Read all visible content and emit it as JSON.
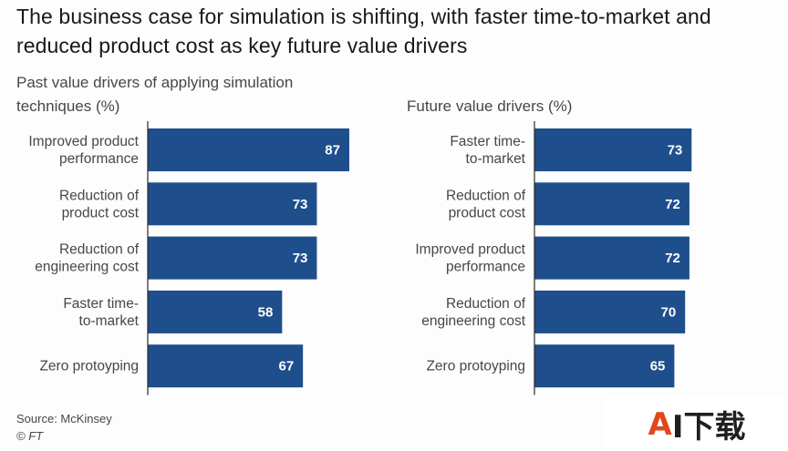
{
  "title": "The business case for simulation is shifting, with faster time-to-market and reduced product cost as key future value drivers",
  "source": "Source: McKinsey",
  "copyright": "© FT",
  "watermark_text": "AI下载",
  "colors": {
    "bar": "#1f4e8c",
    "axis": "#2b2b2b",
    "text": "#4a4643"
  },
  "chart_data": [
    {
      "type": "bar",
      "orientation": "horizontal",
      "title": "Past value drivers of applying simulation techniques (%)",
      "categories": [
        [
          "Improved product",
          "performance"
        ],
        [
          "Reduction of",
          "product cost"
        ],
        [
          "Reduction of",
          "engineering cost"
        ],
        [
          "Faster time-",
          "to-market"
        ],
        [
          "Zero protoyping"
        ]
      ],
      "values": [
        87,
        73,
        73,
        58,
        67
      ],
      "xlim": [
        0,
        100
      ],
      "grid": false,
      "data_labels": true
    },
    {
      "type": "bar",
      "orientation": "horizontal",
      "title": "Future value drivers (%)",
      "categories": [
        [
          "Faster time-",
          "to-market"
        ],
        [
          "Reduction of",
          "product cost"
        ],
        [
          "Improved product",
          "performance"
        ],
        [
          "Reduction of",
          "engineering cost"
        ],
        [
          "Zero protoyping"
        ]
      ],
      "values": [
        73,
        72,
        72,
        70,
        65
      ],
      "xlim": [
        0,
        100
      ],
      "grid": false,
      "data_labels": true
    }
  ]
}
